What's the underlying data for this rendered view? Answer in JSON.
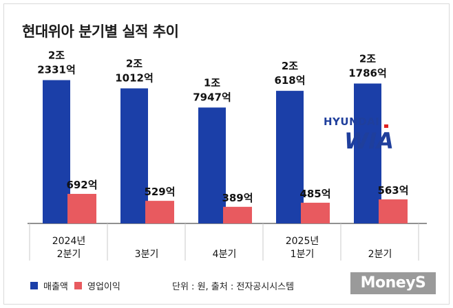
{
  "title": "현대위아 분기별 실적 추이",
  "legend": [
    {
      "name": "매출액",
      "color": "#1b3fa8"
    },
    {
      "name": "영업이익",
      "color": "#e85a5f"
    }
  ],
  "source_note": "단위 : 원, 출처 : 전자공시시스템",
  "logo": {
    "top_text": "HYUNDAI",
    "bottom_text": "WIA"
  },
  "watermark": "MoneyS",
  "chart_data": {
    "type": "bar",
    "title": "현대위아 분기별 실적 추이",
    "unit": "억원",
    "categories": [
      [
        "2024년",
        "2분기"
      ],
      [
        "3분기"
      ],
      [
        "4분기"
      ],
      [
        "2025년",
        "1분기"
      ],
      [
        "2분기"
      ]
    ],
    "series": [
      {
        "name": "매출액",
        "color": "#1b3fa8",
        "values": [
          22331,
          21012,
          17947,
          20618,
          21786
        ],
        "labels": [
          [
            "2조",
            "2331억"
          ],
          [
            "2조",
            "1012억"
          ],
          [
            "1조",
            "7947억"
          ],
          [
            "2조",
            "618억"
          ],
          [
            "2조",
            "1786억"
          ]
        ]
      },
      {
        "name": "영업이익",
        "color": "#e85a5f",
        "values": [
          692,
          529,
          389,
          485,
          563
        ],
        "labels": [
          [
            "692억"
          ],
          [
            "529억"
          ],
          [
            "389억"
          ],
          [
            "485억"
          ],
          [
            "563억"
          ]
        ]
      }
    ],
    "axis_break": true,
    "grid": false
  }
}
